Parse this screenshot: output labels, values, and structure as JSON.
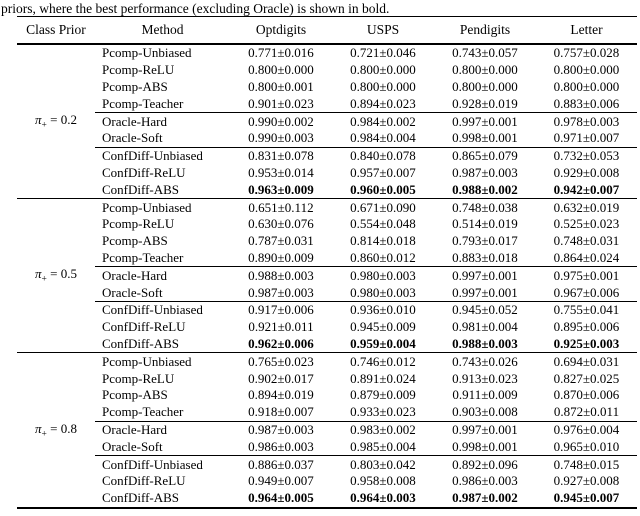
{
  "colors": {
    "background": "#ffffff",
    "text": "#000000",
    "rule": "#000000"
  },
  "caption": "priors, where the best performance (excluding Oracle) is shown in bold.",
  "table": {
    "headers": [
      "Class Prior",
      "Method",
      "Optdigits",
      "USPS",
      "Pendigits",
      "Letter"
    ],
    "groups": [
      {
        "prior": {
          "symbol": "π",
          "subscript": "+",
          "rest": " = 0.2"
        },
        "rows": [
          {
            "method": "Pcomp-Unbiased",
            "values": [
              "0.771±0.016",
              "0.721±0.046",
              "0.743±0.057",
              "0.757±0.028"
            ],
            "bold": false,
            "rule_above": "none"
          },
          {
            "method": "Pcomp-ReLU",
            "values": [
              "0.800±0.000",
              "0.800±0.000",
              "0.800±0.000",
              "0.800±0.000"
            ],
            "bold": false,
            "rule_above": "none"
          },
          {
            "method": "Pcomp-ABS",
            "values": [
              "0.800±0.001",
              "0.800±0.000",
              "0.800±0.000",
              "0.800±0.000"
            ],
            "bold": false,
            "rule_above": "none"
          },
          {
            "method": "Pcomp-Teacher",
            "values": [
              "0.901±0.023",
              "0.894±0.023",
              "0.928±0.019",
              "0.883±0.006"
            ],
            "bold": false,
            "rule_above": "none"
          },
          {
            "method": "Oracle-Hard",
            "values": [
              "0.990±0.002",
              "0.984±0.002",
              "0.997±0.001",
              "0.978±0.003"
            ],
            "bold": false,
            "rule_above": "partial"
          },
          {
            "method": "Oracle-Soft",
            "values": [
              "0.990±0.003",
              "0.984±0.004",
              "0.998±0.001",
              "0.971±0.007"
            ],
            "bold": false,
            "rule_above": "none"
          },
          {
            "method": "ConfDiff-Unbiased",
            "values": [
              "0.831±0.078",
              "0.840±0.078",
              "0.865±0.079",
              "0.732±0.053"
            ],
            "bold": false,
            "rule_above": "partial"
          },
          {
            "method": "ConfDiff-ReLU",
            "values": [
              "0.953±0.014",
              "0.957±0.007",
              "0.987±0.003",
              "0.929±0.008"
            ],
            "bold": false,
            "rule_above": "none"
          },
          {
            "method": "ConfDiff-ABS",
            "values": [
              "0.963±0.009",
              "0.960±0.005",
              "0.988±0.002",
              "0.942±0.007"
            ],
            "bold": true,
            "rule_above": "none"
          }
        ]
      },
      {
        "prior": {
          "symbol": "π",
          "subscript": "+",
          "rest": " = 0.5"
        },
        "rows": [
          {
            "method": "Pcomp-Unbiased",
            "values": [
              "0.651±0.112",
              "0.671±0.090",
              "0.748±0.038",
              "0.632±0.019"
            ],
            "bold": false,
            "rule_above": "none"
          },
          {
            "method": "Pcomp-ReLU",
            "values": [
              "0.630±0.076",
              "0.554±0.048",
              "0.514±0.019",
              "0.525±0.023"
            ],
            "bold": false,
            "rule_above": "none"
          },
          {
            "method": "Pcomp-ABS",
            "values": [
              "0.787±0.031",
              "0.814±0.018",
              "0.793±0.017",
              "0.748±0.031"
            ],
            "bold": false,
            "rule_above": "none"
          },
          {
            "method": "Pcomp-Teacher",
            "values": [
              "0.890±0.009",
              "0.860±0.012",
              "0.883±0.018",
              "0.864±0.024"
            ],
            "bold": false,
            "rule_above": "none"
          },
          {
            "method": "Oracle-Hard",
            "values": [
              "0.988±0.003",
              "0.980±0.003",
              "0.997±0.001",
              "0.975±0.001"
            ],
            "bold": false,
            "rule_above": "partial"
          },
          {
            "method": "Oracle-Soft",
            "values": [
              "0.987±0.003",
              "0.980±0.003",
              "0.997±0.001",
              "0.967±0.006"
            ],
            "bold": false,
            "rule_above": "none"
          },
          {
            "method": "ConfDiff-Unbiased",
            "values": [
              "0.917±0.006",
              "0.936±0.010",
              "0.945±0.052",
              "0.755±0.041"
            ],
            "bold": false,
            "rule_above": "partial"
          },
          {
            "method": "ConfDiff-ReLU",
            "values": [
              "0.921±0.011",
              "0.945±0.009",
              "0.981±0.004",
              "0.895±0.006"
            ],
            "bold": false,
            "rule_above": "none"
          },
          {
            "method": "ConfDiff-ABS",
            "values": [
              "0.962±0.006",
              "0.959±0.004",
              "0.988±0.003",
              "0.925±0.003"
            ],
            "bold": true,
            "rule_above": "none"
          }
        ]
      },
      {
        "prior": {
          "symbol": "π",
          "subscript": "+",
          "rest": " = 0.8"
        },
        "rows": [
          {
            "method": "Pcomp-Unbiased",
            "values": [
              "0.765±0.023",
              "0.746±0.012",
              "0.743±0.026",
              "0.694±0.031"
            ],
            "bold": false,
            "rule_above": "none"
          },
          {
            "method": "Pcomp-ReLU",
            "values": [
              "0.902±0.017",
              "0.891±0.024",
              "0.913±0.023",
              "0.827±0.025"
            ],
            "bold": false,
            "rule_above": "none"
          },
          {
            "method": "Pcomp-ABS",
            "values": [
              "0.894±0.019",
              "0.879±0.009",
              "0.911±0.009",
              "0.870±0.006"
            ],
            "bold": false,
            "rule_above": "none"
          },
          {
            "method": "Pcomp-Teacher",
            "values": [
              "0.918±0.007",
              "0.933±0.023",
              "0.903±0.008",
              "0.872±0.011"
            ],
            "bold": false,
            "rule_above": "none"
          },
          {
            "method": "Oracle-Hard",
            "values": [
              "0.987±0.003",
              "0.983±0.002",
              "0.997±0.001",
              "0.976±0.004"
            ],
            "bold": false,
            "rule_above": "partial"
          },
          {
            "method": "Oracle-Soft",
            "values": [
              "0.986±0.003",
              "0.985±0.004",
              "0.998±0.001",
              "0.965±0.010"
            ],
            "bold": false,
            "rule_above": "none"
          },
          {
            "method": "ConfDiff-Unbiased",
            "values": [
              "0.886±0.037",
              "0.803±0.042",
              "0.892±0.096",
              "0.748±0.015"
            ],
            "bold": false,
            "rule_above": "partial"
          },
          {
            "method": "ConfDiff-ReLU",
            "values": [
              "0.949±0.007",
              "0.958±0.008",
              "0.986±0.003",
              "0.927±0.008"
            ],
            "bold": false,
            "rule_above": "none"
          },
          {
            "method": "ConfDiff-ABS",
            "values": [
              "0.964±0.005",
              "0.964±0.003",
              "0.987±0.002",
              "0.945±0.007"
            ],
            "bold": true,
            "rule_above": "none"
          }
        ]
      }
    ]
  }
}
